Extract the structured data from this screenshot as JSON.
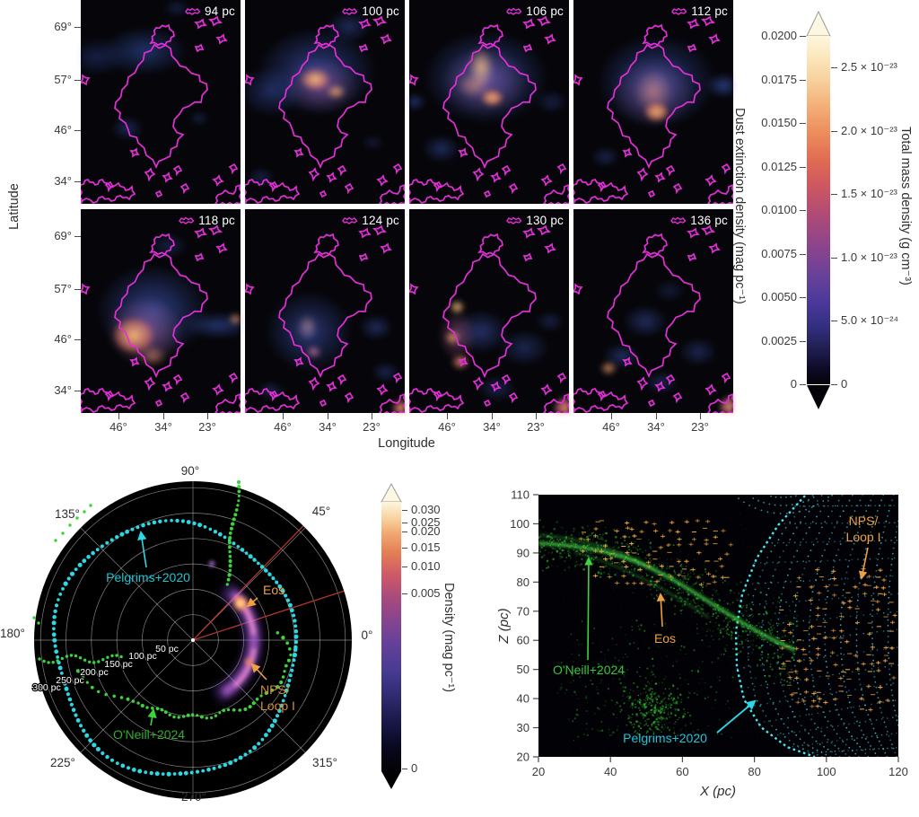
{
  "colors": {
    "contour": "#e22fd6",
    "pelgrims_cyan": "#2bd8e4",
    "oneill_green": "#3bd43b",
    "eos_orange": "#eda13f",
    "red_sightline": "#b5352b",
    "tick_text": "#3a3a3a"
  },
  "chart_data": [
    {
      "id": "extinction_maps",
      "type": "heatmap",
      "description": "Dust extinction density maps of the Eos cloud at eight distance slices; the magenta contour outlines the cloud in every panel",
      "panel_distances": [
        "94 pc",
        "100 pc",
        "106 pc",
        "112 pc",
        "118 pc",
        "124 pc",
        "130 pc",
        "136 pc"
      ],
      "xlabel": "Longitude",
      "x_ticks": [
        "46°",
        "34°",
        "23°"
      ],
      "ylabel": "Latitude",
      "y_ticks": [
        "69°",
        "57°",
        "46°",
        "34°"
      ],
      "colorbar_left": {
        "title": "Dust extinction density (mag pc⁻¹)",
        "ticks": [
          "0.0200",
          "0.0175",
          "0.0150",
          "0.0125",
          "0.0100",
          "0.0075",
          "0.0050",
          "0.0025",
          "0"
        ]
      },
      "colorbar_right": {
        "title": "Total mass density (g cm⁻³)",
        "ticks": [
          "2.5 × 10⁻²³",
          "2.0 × 10⁻²³",
          "1.5 × 10⁻²³",
          "1.0 × 10⁻²³",
          "5.0 × 10⁻²⁴",
          "0"
        ]
      }
    },
    {
      "id": "polar_map",
      "type": "scatter",
      "projection": "polar",
      "angle_ticks": [
        "90°",
        "45°",
        "0°",
        "315°",
        "270°",
        "225°",
        "180°",
        "135°"
      ],
      "radius_ticks": [
        "50 pc",
        "100 pc",
        "150 pc",
        "200 pc",
        "250 pc",
        "300 pc"
      ],
      "annotations": [
        "Pelgrims+2020",
        "Eos",
        "NPS/",
        "Loop I",
        "O'Neill+2024"
      ],
      "series": [
        {
          "name": "Pelgrims+2020",
          "color": "#2bd8e4",
          "style": "cyan dotted loop, r ≈ 210–300 pc"
        },
        {
          "name": "O'Neill+2024",
          "color": "#3bd43b",
          "style": "green dotted loop, r ≈ 150–250 pc"
        },
        {
          "name": "Eos dust arc",
          "color": "#eda13f",
          "style": "bright density arc at r ≈ 110–140 pc spanning ≈ −60° to +55°"
        }
      ],
      "colorbar": {
        "title": "Density (mag pc⁻¹)",
        "ticks": [
          "0.030",
          "0.025",
          "0.020",
          "0.015",
          "0.010",
          "0.005",
          "0"
        ]
      }
    },
    {
      "id": "xz_view",
      "type": "scatter",
      "xlabel": "X (pc)",
      "x_ticks": [
        "20",
        "40",
        "60",
        "80",
        "100",
        "120"
      ],
      "x_range": [
        20,
        120
      ],
      "ylabel": "Z (pc)",
      "y_ticks": [
        "20",
        "30",
        "40",
        "50",
        "60",
        "70",
        "80",
        "90",
        "100",
        "110"
      ],
      "y_range": [
        20,
        110
      ],
      "annotations": [
        "NPS/",
        "Loop I",
        "Eos",
        "O'Neill+2024",
        "Pelgrims+2020"
      ],
      "series": [
        {
          "name": "O'Neill+2024",
          "color": "#2ec82e",
          "style": "green point cloud, Z ≈ 30–100 pc, X ≈ 20–90 pc"
        },
        {
          "name": "Eos",
          "color": "#f2a63e",
          "style": "orange sample crosses in two clusters"
        },
        {
          "name": "Pelgrims+2020",
          "color": "#49e2ef",
          "style": "cyan dotted mesh bubble, X ≈ 75–120 pc"
        }
      ]
    }
  ]
}
